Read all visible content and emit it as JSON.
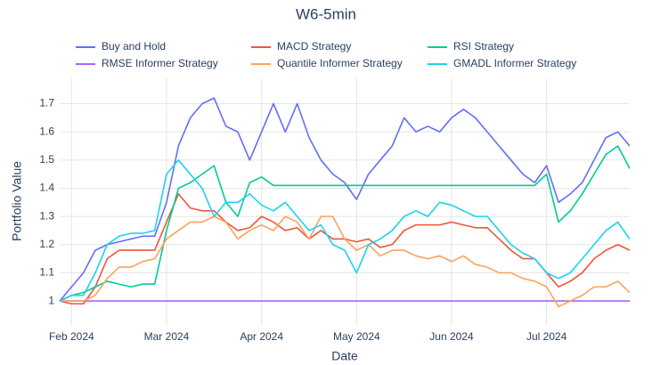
{
  "chart_data": {
    "type": "line",
    "title": "W6-5min",
    "x_label": "Date",
    "y_label": "Portfolio Value",
    "categories": [
      null,
      "Feb 2024",
      null,
      null,
      null,
      null,
      null,
      null,
      null,
      "Mar 2024",
      null,
      null,
      null,
      null,
      null,
      null,
      null,
      "Apr 2024",
      null,
      null,
      null,
      null,
      null,
      null,
      null,
      "May 2024",
      null,
      null,
      null,
      null,
      null,
      null,
      null,
      "Jun 2024",
      null,
      null,
      null,
      null,
      null,
      null,
      null,
      "Jul 2024",
      null,
      null,
      null,
      null,
      null,
      null,
      null
    ],
    "ylim": [
      0.915,
      1.79
    ],
    "yticks": [
      1,
      1.1,
      1.2,
      1.3,
      1.4,
      1.5,
      1.6,
      1.7
    ],
    "grid": true,
    "legend": "top",
    "series": [
      {
        "name": "Buy and Hold",
        "color": "#636efa",
        "values": [
          1.0,
          1.05,
          1.1,
          1.18,
          1.2,
          1.21,
          1.22,
          1.23,
          1.23,
          1.35,
          1.55,
          1.65,
          1.7,
          1.72,
          1.62,
          1.6,
          1.5,
          1.6,
          1.7,
          1.6,
          1.7,
          1.58,
          1.5,
          1.45,
          1.42,
          1.36,
          1.45,
          1.5,
          1.55,
          1.65,
          1.6,
          1.62,
          1.6,
          1.65,
          1.68,
          1.65,
          1.6,
          1.55,
          1.5,
          1.45,
          1.42,
          1.48,
          1.35,
          1.38,
          1.42,
          1.5,
          1.58,
          1.6,
          1.55
        ]
      },
      {
        "name": "MACD Strategy",
        "color": "#EF553B",
        "values": [
          1.0,
          0.99,
          0.99,
          1.05,
          1.15,
          1.18,
          1.18,
          1.18,
          1.18,
          1.28,
          1.38,
          1.33,
          1.32,
          1.32,
          1.28,
          1.25,
          1.26,
          1.3,
          1.28,
          1.25,
          1.26,
          1.22,
          1.25,
          1.22,
          1.22,
          1.21,
          1.22,
          1.19,
          1.2,
          1.25,
          1.27,
          1.27,
          1.27,
          1.28,
          1.27,
          1.26,
          1.26,
          1.22,
          1.18,
          1.15,
          1.15,
          1.1,
          1.05,
          1.07,
          1.1,
          1.15,
          1.18,
          1.2,
          1.18
        ]
      },
      {
        "name": "RSI Strategy",
        "color": "#00cc96",
        "values": [
          1.0,
          1.02,
          1.03,
          1.05,
          1.07,
          1.06,
          1.05,
          1.06,
          1.06,
          1.25,
          1.4,
          1.42,
          1.45,
          1.48,
          1.35,
          1.3,
          1.42,
          1.44,
          1.41,
          1.41,
          1.41,
          1.41,
          1.41,
          1.41,
          1.41,
          1.41,
          1.41,
          1.41,
          1.41,
          1.41,
          1.41,
          1.41,
          1.41,
          1.41,
          1.41,
          1.41,
          1.41,
          1.41,
          1.41,
          1.41,
          1.41,
          1.45,
          1.28,
          1.32,
          1.38,
          1.45,
          1.52,
          1.55,
          1.47
        ]
      },
      {
        "name": "RMSE Informer Strategy",
        "color": "#ab63fa",
        "values": [
          1.0,
          1.0,
          1.0,
          1.0,
          1.0,
          1.0,
          1.0,
          1.0,
          1.0,
          1.0,
          1.0,
          1.0,
          1.0,
          1.0,
          1.0,
          1.0,
          1.0,
          1.0,
          1.0,
          1.0,
          1.0,
          1.0,
          1.0,
          1.0,
          1.0,
          1.0,
          1.0,
          1.0,
          1.0,
          1.0,
          1.0,
          1.0,
          1.0,
          1.0,
          1.0,
          1.0,
          1.0,
          1.0,
          1.0,
          1.0,
          1.0,
          1.0,
          1.0,
          1.0,
          1.0,
          1.0,
          1.0,
          1.0,
          1.0
        ]
      },
      {
        "name": "Quantile Informer Strategy",
        "color": "#FFA15A",
        "values": [
          1.0,
          1.0,
          1.0,
          1.02,
          1.08,
          1.12,
          1.12,
          1.14,
          1.15,
          1.22,
          1.25,
          1.28,
          1.28,
          1.3,
          1.28,
          1.22,
          1.25,
          1.27,
          1.25,
          1.3,
          1.28,
          1.22,
          1.3,
          1.3,
          1.22,
          1.18,
          1.2,
          1.16,
          1.18,
          1.18,
          1.16,
          1.15,
          1.16,
          1.14,
          1.16,
          1.13,
          1.12,
          1.1,
          1.1,
          1.08,
          1.07,
          1.05,
          0.98,
          1.0,
          1.02,
          1.05,
          1.05,
          1.07,
          1.03
        ]
      },
      {
        "name": "GMADL Informer Strategy",
        "color": "#19d3f3",
        "values": [
          1.0,
          1.02,
          1.02,
          1.1,
          1.2,
          1.23,
          1.24,
          1.24,
          1.25,
          1.45,
          1.5,
          1.45,
          1.4,
          1.3,
          1.35,
          1.35,
          1.38,
          1.34,
          1.32,
          1.35,
          1.3,
          1.25,
          1.27,
          1.2,
          1.18,
          1.1,
          1.2,
          1.22,
          1.25,
          1.3,
          1.32,
          1.3,
          1.35,
          1.34,
          1.32,
          1.3,
          1.3,
          1.25,
          1.2,
          1.17,
          1.15,
          1.1,
          1.08,
          1.1,
          1.15,
          1.2,
          1.25,
          1.28,
          1.22
        ]
      }
    ]
  }
}
